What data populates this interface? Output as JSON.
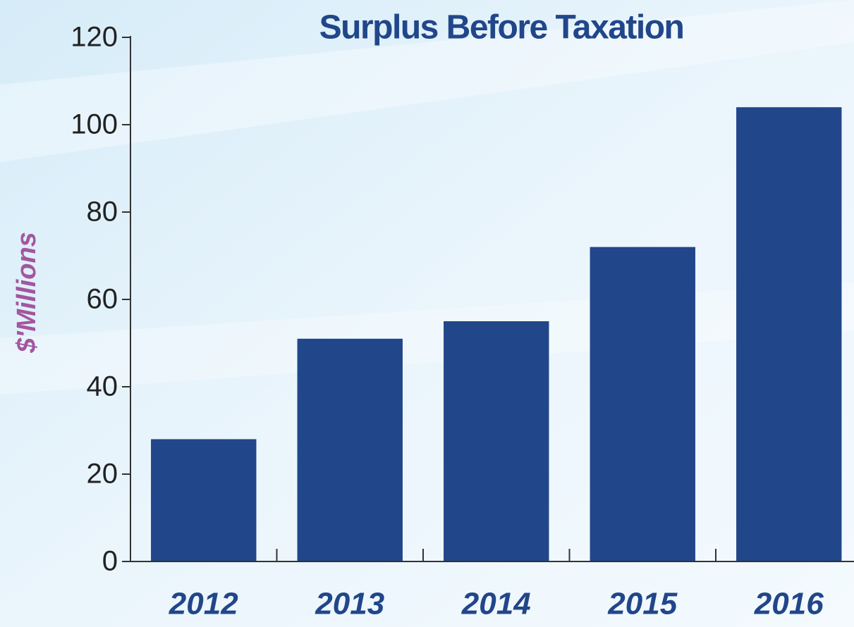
{
  "chart_data": {
    "type": "bar",
    "title": "Surplus Before Taxation",
    "y_label": "$'Millions",
    "categories": [
      "2012",
      "2013",
      "2014",
      "2015",
      "2016"
    ],
    "values": [
      28,
      51,
      55,
      72,
      104
    ],
    "color": "#21468a",
    "ylim": [
      0,
      120
    ],
    "yticks": [
      0,
      20,
      40,
      60,
      80,
      100,
      120
    ],
    "grid": false
  }
}
